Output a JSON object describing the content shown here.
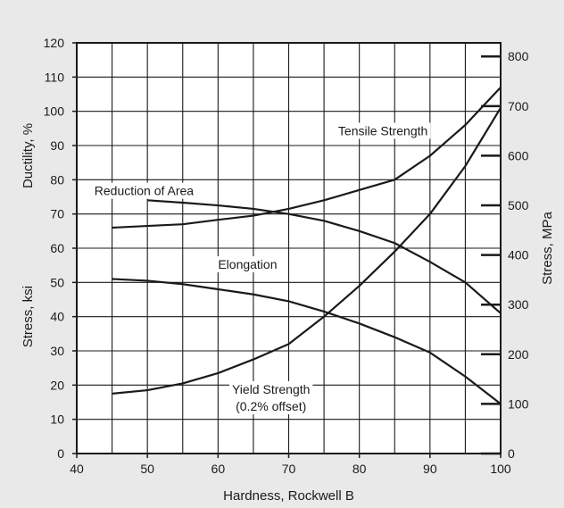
{
  "chart_data": {
    "type": "line",
    "xlabel": "Hardness, Rockwell B",
    "ylabel_left_outer": "Stress, ksi",
    "ylabel_left_inner": "Ductility, %",
    "ylabel_right": "Stress, MPa",
    "xlim": [
      40,
      100
    ],
    "ylim": [
      0,
      120
    ],
    "y2lim_mpa": [
      0,
      827.4
    ],
    "grid": true,
    "x_ticks": [
      "40",
      "50",
      "60",
      "70",
      "80",
      "90",
      "100"
    ],
    "y_ticks": [
      "0",
      "10",
      "20",
      "30",
      "40",
      "50",
      "60",
      "70",
      "80",
      "90",
      "100",
      "110",
      "120"
    ],
    "y2_ticks": [
      "0",
      "100",
      "200",
      "300",
      "400",
      "500",
      "600",
      "700",
      "800"
    ],
    "series": [
      {
        "name": "Tensile Strength",
        "label_line1": "Tensile Strength",
        "label_line2": "",
        "x": [
          45,
          50,
          55,
          60,
          65,
          70,
          75,
          80,
          85,
          90,
          95,
          100
        ],
        "y": [
          66,
          66.5,
          67,
          68.3,
          69.5,
          71.5,
          74,
          77,
          80,
          87,
          96,
          107
        ]
      },
      {
        "name": "Yield Strength (0.2% offset)",
        "label_line1": "Yield Strength",
        "label_line2": "(0.2% offset)",
        "x": [
          45,
          50,
          55,
          60,
          65,
          70,
          75,
          80,
          85,
          90,
          95,
          100
        ],
        "y": [
          17.5,
          18.5,
          20.5,
          23.5,
          27.5,
          32,
          40,
          49,
          59,
          70,
          84,
          101
        ]
      },
      {
        "name": "Reduction of Area",
        "label_line1": "Reduction of Area",
        "label_line2": "",
        "x": [
          50,
          55,
          60,
          65,
          70,
          75,
          80,
          85,
          90,
          95,
          100
        ],
        "y": [
          74,
          73.3,
          72.5,
          71.5,
          70,
          68,
          65,
          61.5,
          56,
          50,
          41
        ]
      },
      {
        "name": "Elongation",
        "label_line1": "Elongation",
        "label_line2": "",
        "x": [
          45,
          50,
          55,
          60,
          65,
          70,
          75,
          80,
          85,
          90,
          95,
          100
        ],
        "y": [
          51,
          50.5,
          49.5,
          48,
          46.5,
          44.5,
          41.5,
          38,
          34,
          29.5,
          22.5,
          14.5
        ]
      }
    ]
  }
}
